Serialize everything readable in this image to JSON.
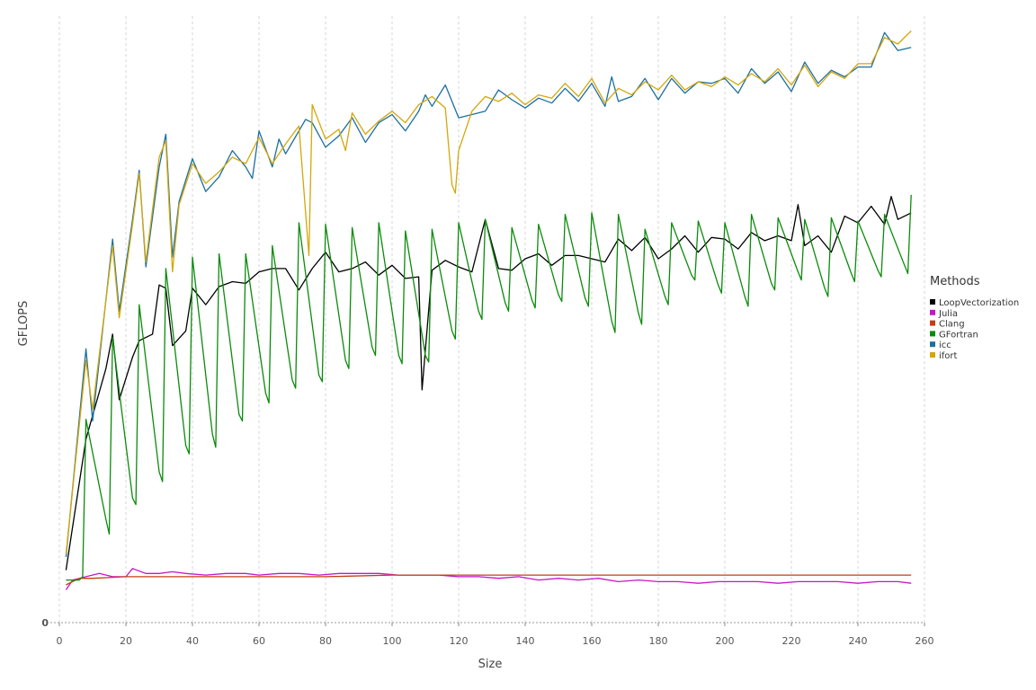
{
  "chart_data": {
    "type": "line",
    "title": "",
    "xlabel": "Size",
    "ylabel": "GFLOPS",
    "xlim": [
      0,
      260
    ],
    "xticks": [
      0,
      20,
      40,
      60,
      80,
      100,
      120,
      140,
      160,
      180,
      200,
      220,
      240,
      260
    ],
    "ylim": [
      0,
      37
    ],
    "yticks": [
      0
    ],
    "grid": {
      "vertical": true,
      "horizontal": false
    },
    "legend": {
      "title": "Methods",
      "placement": "right"
    },
    "series": [
      {
        "name": "LoopVectorization",
        "color": "#000000",
        "x": [
          2,
          8,
          14,
          16,
          18,
          22,
          24,
          28,
          30,
          32,
          34,
          38,
          40,
          44,
          48,
          52,
          56,
          60,
          64,
          68,
          72,
          76,
          80,
          84,
          88,
          92,
          96,
          100,
          104,
          108,
          109,
          112,
          116,
          120,
          124,
          128,
          132,
          136,
          140,
          144,
          148,
          152,
          156,
          160,
          164,
          168,
          172,
          176,
          180,
          184,
          188,
          192,
          196,
          200,
          204,
          208,
          212,
          216,
          220,
          222,
          224,
          228,
          232,
          236,
          240,
          244,
          248,
          250,
          252,
          256
        ],
        "y": [
          3.2,
          11.2,
          15.5,
          17.6,
          13.6,
          16.2,
          17.2,
          17.6,
          20.6,
          20.4,
          16.9,
          17.8,
          20.4,
          19.4,
          20.5,
          20.8,
          20.7,
          21.4,
          21.6,
          21.6,
          20.3,
          21.6,
          22.6,
          21.4,
          21.6,
          22.0,
          21.2,
          21.8,
          21.0,
          21.1,
          14.2,
          21.5,
          22.1,
          21.7,
          21.4,
          24.6,
          21.6,
          21.5,
          22.2,
          22.5,
          21.8,
          22.4,
          22.4,
          22.2,
          22.0,
          23.4,
          22.7,
          23.5,
          22.2,
          22.8,
          23.6,
          22.6,
          23.5,
          23.4,
          22.8,
          23.8,
          23.3,
          23.6,
          23.3,
          25.5,
          23.0,
          23.6,
          22.6,
          24.8,
          24.4,
          25.4,
          24.3,
          26.0,
          24.6,
          25.0
        ]
      },
      {
        "name": "Julia",
        "color": "#c517c5",
        "x": [
          2,
          4,
          8,
          12,
          16,
          20,
          22,
          26,
          30,
          34,
          38,
          44,
          50,
          56,
          60,
          66,
          72,
          78,
          84,
          90,
          96,
          102,
          108,
          114,
          120,
          126,
          132,
          138,
          144,
          150,
          156,
          162,
          168,
          174,
          180,
          186,
          192,
          198,
          204,
          210,
          216,
          222,
          228,
          234,
          240,
          246,
          252,
          256
        ],
        "y": [
          2.0,
          2.6,
          2.8,
          3.0,
          2.8,
          2.8,
          3.3,
          3.0,
          3.0,
          3.1,
          3.0,
          2.9,
          3.0,
          3.0,
          2.9,
          3.0,
          3.0,
          2.9,
          3.0,
          3.0,
          3.0,
          2.9,
          2.9,
          2.9,
          2.8,
          2.8,
          2.7,
          2.8,
          2.6,
          2.7,
          2.6,
          2.7,
          2.5,
          2.6,
          2.5,
          2.5,
          2.4,
          2.5,
          2.5,
          2.5,
          2.4,
          2.5,
          2.5,
          2.5,
          2.4,
          2.5,
          2.5,
          2.4
        ]
      },
      {
        "name": "Clang",
        "color": "#c23e17",
        "x": [
          2,
          6,
          10,
          20,
          40,
          60,
          80,
          100,
          120,
          140,
          160,
          180,
          200,
          220,
          240,
          256
        ],
        "y": [
          2.3,
          2.7,
          2.7,
          2.8,
          2.8,
          2.8,
          2.8,
          2.9,
          2.9,
          2.9,
          2.9,
          2.9,
          2.9,
          2.9,
          2.9,
          2.9
        ]
      },
      {
        "name": "GFortran",
        "color": "#0b8b0b",
        "x": [
          2,
          6,
          7,
          8,
          14,
          15,
          16,
          22,
          23,
          24,
          30,
          31,
          32,
          38,
          39,
          40,
          46,
          47,
          48,
          54,
          55,
          56,
          62,
          63,
          64,
          70,
          71,
          72,
          78,
          79,
          80,
          86,
          87,
          88,
          94,
          95,
          96,
          102,
          103,
          104,
          110,
          111,
          112,
          118,
          119,
          120,
          126,
          127,
          128,
          134,
          135,
          136,
          142,
          143,
          144,
          150,
          151,
          152,
          158,
          159,
          160,
          166,
          167,
          168,
          174,
          175,
          176,
          182,
          183,
          184,
          190,
          191,
          192,
          198,
          199,
          200,
          206,
          207,
          208,
          214,
          215,
          216,
          222,
          223,
          224,
          230,
          231,
          232,
          238,
          239,
          240,
          246,
          247,
          248,
          254,
          255,
          256
        ],
        "y": [
          2.6,
          2.6,
          2.8,
          12.4,
          6.3,
          5.4,
          17.4,
          7.6,
          7.2,
          19.4,
          9.2,
          8.6,
          21.6,
          10.8,
          10.3,
          22.3,
          11.5,
          10.7,
          22.5,
          12.7,
          12.3,
          22.5,
          14.0,
          13.4,
          23.0,
          14.8,
          14.3,
          24.4,
          15.1,
          14.7,
          24.3,
          16.0,
          15.5,
          24.1,
          16.8,
          16.3,
          24.4,
          16.3,
          15.8,
          23.9,
          16.3,
          15.9,
          24.0,
          17.8,
          17.3,
          24.4,
          19.0,
          18.5,
          24.6,
          19.5,
          19.0,
          24.1,
          19.7,
          19.2,
          24.3,
          20.0,
          19.6,
          24.9,
          19.8,
          19.3,
          25.0,
          18.4,
          17.7,
          24.9,
          18.9,
          18.2,
          24.0,
          19.9,
          19.4,
          24.4,
          21.2,
          20.9,
          24.5,
          20.6,
          20.1,
          24.4,
          19.9,
          19.3,
          24.9,
          20.7,
          20.3,
          24.7,
          21.4,
          20.9,
          24.6,
          20.4,
          19.9,
          24.7,
          21.3,
          20.8,
          24.5,
          21.5,
          21.1,
          24.9,
          21.8,
          21.3,
          26.1
        ]
      },
      {
        "name": "icc",
        "color": "#1c6fa0",
        "x": [
          2,
          8,
          10,
          16,
          18,
          22,
          24,
          26,
          30,
          32,
          34,
          36,
          40,
          44,
          48,
          52,
          56,
          58,
          60,
          64,
          66,
          68,
          70,
          74,
          76,
          80,
          84,
          88,
          92,
          96,
          100,
          104,
          108,
          110,
          112,
          116,
          120,
          124,
          128,
          132,
          136,
          140,
          144,
          148,
          152,
          156,
          160,
          164,
          166,
          168,
          172,
          176,
          180,
          184,
          188,
          192,
          196,
          200,
          204,
          208,
          212,
          216,
          220,
          224,
          228,
          232,
          236,
          240,
          244,
          248,
          252,
          256
        ],
        "y": [
          4.0,
          16.7,
          12.3,
          23.4,
          19.0,
          24.6,
          27.6,
          21.7,
          27.8,
          29.8,
          22.3,
          25.7,
          28.3,
          26.3,
          27.2,
          28.8,
          27.8,
          27.1,
          30.0,
          27.8,
          29.5,
          28.6,
          29.3,
          30.7,
          30.5,
          29.0,
          29.7,
          30.8,
          29.3,
          30.5,
          31.0,
          30.0,
          31.2,
          32.2,
          31.5,
          32.8,
          30.8,
          31.0,
          31.2,
          32.5,
          31.9,
          31.4,
          32.0,
          31.7,
          32.6,
          31.8,
          32.9,
          31.5,
          33.3,
          31.8,
          32.1,
          33.2,
          31.9,
          33.2,
          32.3,
          33.0,
          32.9,
          33.2,
          32.3,
          33.8,
          32.9,
          33.6,
          32.4,
          34.2,
          32.9,
          33.7,
          33.3,
          33.9,
          33.9,
          36.0,
          34.9,
          35.1
        ]
      },
      {
        "name": "ifort",
        "color": "#d3a70b",
        "x": [
          2,
          8,
          10,
          16,
          18,
          22,
          24,
          26,
          30,
          32,
          34,
          36,
          40,
          44,
          48,
          52,
          56,
          60,
          64,
          68,
          72,
          75,
          76,
          80,
          84,
          86,
          88,
          92,
          96,
          100,
          104,
          108,
          112,
          116,
          118,
          119,
          120,
          124,
          128,
          132,
          136,
          140,
          144,
          148,
          152,
          156,
          160,
          164,
          168,
          172,
          176,
          180,
          184,
          188,
          192,
          196,
          200,
          204,
          208,
          212,
          216,
          220,
          224,
          228,
          232,
          236,
          240,
          244,
          248,
          252,
          256
        ],
        "y": [
          4.2,
          16.0,
          13.0,
          23.0,
          18.6,
          24.3,
          27.4,
          22.0,
          28.4,
          29.4,
          21.4,
          25.5,
          28.0,
          26.8,
          27.5,
          28.4,
          28.0,
          29.6,
          28.0,
          29.2,
          30.3,
          22.4,
          31.6,
          29.5,
          30.1,
          28.8,
          31.1,
          29.8,
          30.6,
          31.2,
          30.5,
          31.6,
          32.1,
          31.4,
          26.7,
          26.2,
          28.8,
          31.2,
          32.1,
          31.8,
          32.3,
          31.6,
          32.2,
          32.0,
          32.9,
          32.1,
          33.2,
          31.7,
          32.6,
          32.2,
          33.0,
          32.5,
          33.4,
          32.5,
          33.0,
          32.7,
          33.3,
          32.8,
          33.5,
          33.0,
          33.8,
          32.8,
          34.0,
          32.7,
          33.6,
          33.2,
          34.1,
          34.1,
          35.7,
          35.3,
          36.1
        ]
      }
    ]
  }
}
